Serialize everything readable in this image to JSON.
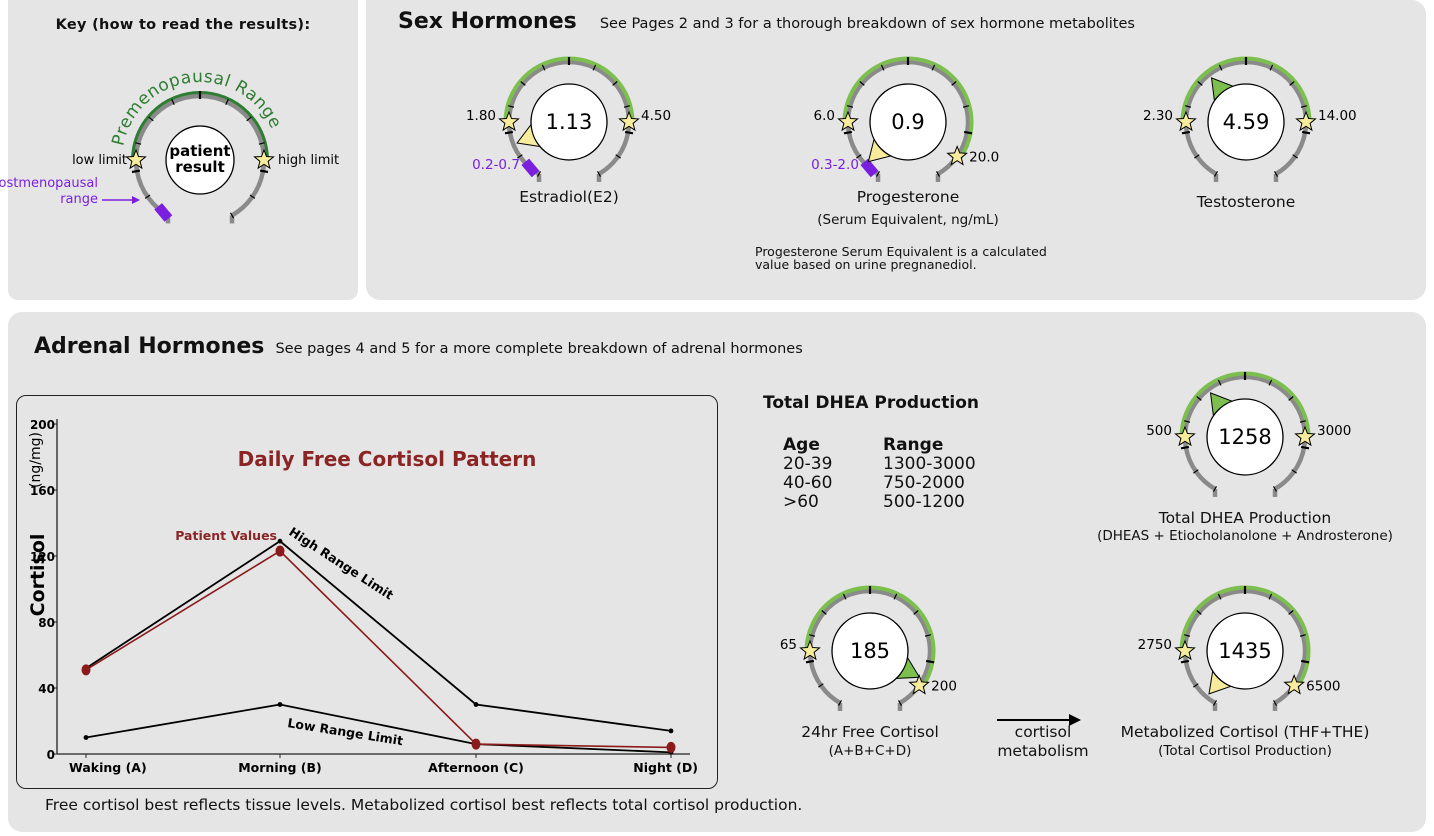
{
  "colors": {
    "panel_bg": "#e5e5e5",
    "arc_gray": "#8a8a8a",
    "range_green": "#7cbf4f",
    "range_green_dark": "#2e7d32",
    "purple": "#7a1fe0",
    "star_fill": "#f6ec9c",
    "pointer_yellow": "#f6ec9c",
    "pointer_green": "#7cbf4f",
    "patient_red": "#8b1a1a",
    "title_red": "#8b2525"
  },
  "key": {
    "title": "Key (how to read the results):",
    "range_label": "Premenopausal Range",
    "low_label": "low limit",
    "high_label": "high limit",
    "center_line1": "patient",
    "center_line2": "result",
    "post_label_line1": "Postmenopausal",
    "post_label_line2": "range"
  },
  "sex_hormones": {
    "title": "Sex Hormones",
    "subtitle": "See Pages 2 and 3 for a thorough breakdown of sex hormone metabolites",
    "gauges": [
      {
        "name": "Estradiol(E2)",
        "sub": "",
        "value": "1.13",
        "low": "1.80",
        "high": "4.50",
        "post_range": "0.2-0.7",
        "pointer_angle": -112,
        "pointer_color": "yellow",
        "high_angle": 90
      },
      {
        "name": "Progesterone",
        "sub": "(Serum Equivalent, ng/mL)",
        "value": "0.9",
        "low": "6.0",
        "high": "20.0",
        "post_range": "0.3-2.0",
        "pointer_angle": -135,
        "pointer_color": "yellow",
        "high_angle": 125
      },
      {
        "name": "Testosterone",
        "sub": "",
        "value": "4.59",
        "low": "2.30",
        "high": "14.00",
        "post_range": "",
        "pointer_angle": -38,
        "pointer_color": "green",
        "high_angle": 90
      }
    ],
    "progesterone_note_line1": "Progesterone Serum Equivalent is a calculated",
    "progesterone_note_line2": "value based on urine pregnanediol."
  },
  "adrenal": {
    "title": "Adrenal Hormones",
    "subtitle": "See pages 4 and 5 for a more complete breakdown of adrenal hormones",
    "dhea_table": {
      "title": "Total DHEA Production",
      "headers": [
        "Age",
        "Range"
      ],
      "rows": [
        [
          "20-39",
          "1300-3000"
        ],
        [
          "40-60",
          "750-2000"
        ],
        [
          ">60",
          "500-1200"
        ]
      ]
    },
    "gauges": [
      {
        "id": "dhea",
        "name": "Total DHEA Production",
        "sub": "(DHEAS + Etiocholanolone + Androsterone)",
        "value": "1258",
        "low": "500",
        "high": "3000",
        "pointer_angle": -38,
        "pointer_color": "green",
        "high_angle": 90
      },
      {
        "id": "free-cortisol",
        "name": "24hr Free Cortisol",
        "sub": "(A+B+C+D)",
        "value": "185",
        "low": "65",
        "high": "200",
        "pointer_angle": 118,
        "pointer_color": "green",
        "high_angle": 125
      },
      {
        "id": "metabolized-cortisol",
        "name": "Metabolized Cortisol (THF+THE)",
        "sub": "(Total Cortisol Production)",
        "value": "1435",
        "low": "2750",
        "high": "6500",
        "pointer_angle": -140,
        "pointer_color": "yellow",
        "high_angle": 125
      }
    ],
    "arrow_label_line1": "cortisol",
    "arrow_label_line2": "metabolism",
    "footer": "Free cortisol best reflects tissue levels. Metabolized cortisol best reflects total cortisol production."
  },
  "chart_data": {
    "type": "line",
    "title": "Daily Free Cortisol Pattern",
    "xlabel": "",
    "ylabel": "Cortisol",
    "ylabel_unit": "(ng/mg)",
    "categories": [
      "Waking (A)",
      "Morning (B)",
      "Afternoon (C)",
      "Night (D)"
    ],
    "yticks": [
      0,
      40,
      80,
      120,
      160,
      200
    ],
    "ylim": [
      0,
      200
    ],
    "grid": false,
    "series": [
      {
        "name": "Patient Values",
        "values": [
          51,
          123,
          6,
          4
        ],
        "color": "#8b1a1a"
      },
      {
        "name": "High Range Limit",
        "values": [
          52,
          129,
          30,
          14
        ],
        "color": "#000000"
      },
      {
        "name": "Low Range Limit",
        "values": [
          10,
          30,
          6,
          1
        ],
        "color": "#000000"
      }
    ]
  }
}
